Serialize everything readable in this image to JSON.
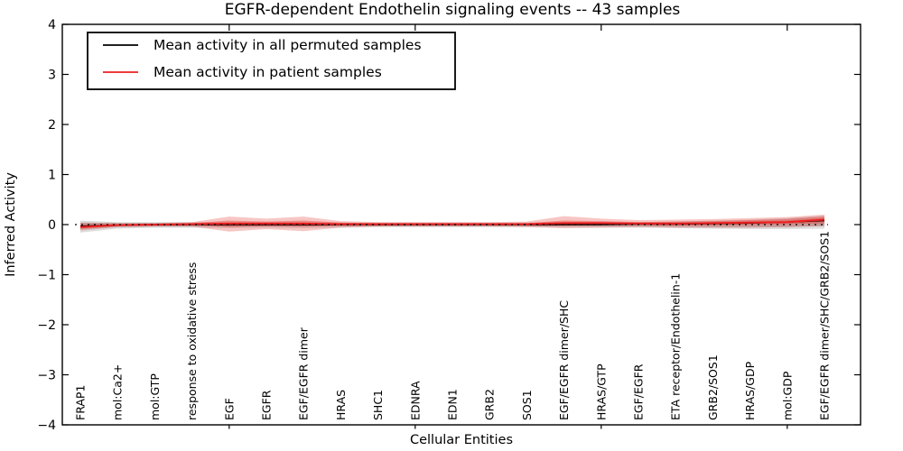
{
  "title": "EGFR-dependent Endothelin signaling events -- 43 samples",
  "axes": {
    "xlabel": "Cellular Entities",
    "ylabel": "Inferred Activity",
    "ytick_labels": [
      "4",
      "3",
      "2",
      "1",
      "0",
      "−1",
      "−2",
      "−3",
      "−4"
    ],
    "ytick_values": [
      4,
      3,
      2,
      1,
      0,
      -1,
      -2,
      -3,
      -4
    ],
    "xtick_indices": [
      4,
      9,
      14,
      19
    ],
    "ylim": [
      -4,
      4
    ],
    "grid": "off"
  },
  "legend": {
    "position": "upper-left",
    "entries": [
      {
        "label": "Mean activity in all permuted samples",
        "color": "#000000"
      },
      {
        "label": "Mean activity in patient samples",
        "color": "#ed1f1f"
      }
    ]
  },
  "chart_data": {
    "type": "line",
    "title": "EGFR-dependent Endothelin signaling events -- 43 samples",
    "xlabel": "Cellular Entities",
    "ylabel": "Inferred Activity",
    "ylim": [
      -4,
      4
    ],
    "categories": [
      "FRAP1",
      "mol:Ca2+",
      "mol:GTP",
      "response to oxidative stress",
      "EGF",
      "EGFR",
      "EGF/EGFR dimer",
      "HRAS",
      "SHC1",
      "EDNRA",
      "EDN1",
      "GRB2",
      "SOS1",
      "EGF/EGFR dimer/SHC",
      "HRAS/GTP",
      "EGF/EGFR",
      "ETA receptor/Endothelin-1",
      "GRB2/SOS1",
      "HRAS/GDP",
      "mol:GDP",
      "EGF/EGFR dimer/SHC/GRB2/SOS1"
    ],
    "series": [
      {
        "name": "Mean activity in all permuted samples",
        "color": "#000000",
        "width": 1.4,
        "values": [
          -0.03,
          -0.01,
          0,
          0,
          0,
          0,
          0,
          0,
          0,
          0,
          0,
          0,
          0,
          0,
          0,
          0.01,
          0.01,
          0.02,
          0.03,
          0.05,
          0.08
        ]
      },
      {
        "name": "Mean activity in patient samples",
        "color": "#ed1f1f",
        "width": 2,
        "values": [
          -0.05,
          -0.01,
          0,
          0.01,
          0.02,
          0.02,
          0.02,
          0.01,
          0.01,
          0.01,
          0.01,
          0.01,
          0.01,
          0.03,
          0.03,
          0.02,
          0.02,
          0.03,
          0.04,
          0.05,
          0.1
        ]
      }
    ],
    "bands": [
      {
        "name": "permuted-std-outer",
        "color": "#aaaaaa",
        "opacity": 0.4,
        "lo": [
          -0.16,
          -0.08,
          -0.06,
          -0.06,
          -0.07,
          -0.06,
          -0.07,
          -0.06,
          -0.05,
          -0.05,
          -0.05,
          -0.05,
          -0.05,
          -0.06,
          -0.06,
          -0.06,
          -0.07,
          -0.08,
          -0.09,
          -0.09,
          -0.08
        ],
        "hi": [
          0.08,
          0.05,
          0.05,
          0.05,
          0.05,
          0.05,
          0.05,
          0.04,
          0.04,
          0.04,
          0.04,
          0.04,
          0.04,
          0.05,
          0.05,
          0.05,
          0.06,
          0.08,
          0.1,
          0.13,
          0.18
        ]
      },
      {
        "name": "permuted-std-inner",
        "color": "#9a9a9a",
        "opacity": 0.45,
        "lo": [
          -0.09,
          -0.05,
          -0.04,
          -0.04,
          -0.04,
          -0.04,
          -0.04,
          -0.03,
          -0.03,
          -0.03,
          -0.03,
          -0.03,
          -0.03,
          -0.03,
          -0.03,
          -0.03,
          -0.04,
          -0.05,
          -0.05,
          -0.05,
          -0.03
        ],
        "hi": [
          0.04,
          0.03,
          0.03,
          0.03,
          0.03,
          0.03,
          0.03,
          0.02,
          0.02,
          0.02,
          0.02,
          0.02,
          0.02,
          0.03,
          0.03,
          0.03,
          0.04,
          0.05,
          0.06,
          0.08,
          0.13
        ]
      },
      {
        "name": "patient-std-outer",
        "color": "#e4423d",
        "opacity": 0.3,
        "lo": [
          -0.12,
          -0.05,
          -0.04,
          -0.04,
          -0.14,
          -0.09,
          -0.13,
          -0.06,
          -0.04,
          -0.04,
          -0.04,
          -0.04,
          -0.05,
          -0.07,
          -0.06,
          -0.05,
          -0.06,
          -0.06,
          -0.06,
          -0.05,
          -0.03
        ],
        "hi": [
          0.04,
          0.03,
          0.03,
          0.05,
          0.16,
          0.12,
          0.16,
          0.07,
          0.05,
          0.05,
          0.05,
          0.05,
          0.06,
          0.17,
          0.12,
          0.09,
          0.1,
          0.11,
          0.13,
          0.15,
          0.2
        ]
      },
      {
        "name": "patient-std-inner",
        "color": "#e4423d",
        "opacity": 0.45,
        "lo": [
          -0.08,
          -0.03,
          -0.02,
          -0.01,
          -0.05,
          -0.03,
          -0.04,
          -0.02,
          -0.02,
          -0.01,
          -0.01,
          -0.01,
          -0.02,
          -0.02,
          -0.01,
          -0.01,
          -0.02,
          -0.01,
          0.0,
          0.01,
          0.03
        ],
        "hi": [
          0.0,
          0.01,
          0.01,
          0.03,
          0.08,
          0.06,
          0.08,
          0.04,
          0.03,
          0.03,
          0.03,
          0.03,
          0.03,
          0.08,
          0.07,
          0.05,
          0.06,
          0.07,
          0.09,
          0.11,
          0.16
        ]
      }
    ],
    "zero_line": {
      "value": 0,
      "style": "dotted",
      "color": "#000000"
    },
    "legend_position": "upper-left",
    "samples_count": 43
  }
}
